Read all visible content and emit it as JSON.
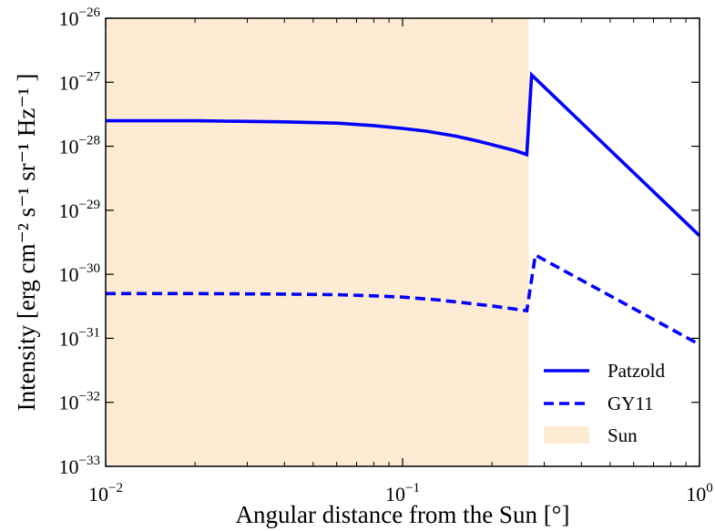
{
  "chart_data": {
    "type": "line",
    "xscale": "log",
    "yscale": "log",
    "xlim": [
      0.01,
      1
    ],
    "ylim": [
      1e-33,
      1e-26
    ],
    "xlabel": "Angular distance from the Sun [°]",
    "ylabel": "Intensity [erg cm⁻² s⁻¹ sr⁻¹ Hz⁻¹ ]",
    "x_ticks": [
      {
        "value": 0.01,
        "base": "10",
        "exp": "−2"
      },
      {
        "value": 0.1,
        "base": "10",
        "exp": "−1"
      },
      {
        "value": 1,
        "base": "10",
        "exp": "0"
      }
    ],
    "y_ticks": [
      {
        "value": 1e-33,
        "base": "10",
        "exp": "−33"
      },
      {
        "value": 1e-32,
        "base": "10",
        "exp": "−32"
      },
      {
        "value": 1e-31,
        "base": "10",
        "exp": "−31"
      },
      {
        "value": 1e-30,
        "base": "10",
        "exp": "−30"
      },
      {
        "value": 1e-29,
        "base": "10",
        "exp": "−29"
      },
      {
        "value": 1e-28,
        "base": "10",
        "exp": "−28"
      },
      {
        "value": 1e-27,
        "base": "10",
        "exp": "−27"
      },
      {
        "value": 1e-26,
        "base": "10",
        "exp": "−26"
      }
    ],
    "shaded_regions": [
      {
        "name": "Sun",
        "x": [
          0.01,
          0.266
        ],
        "color": "#fdebd3"
      }
    ],
    "series": [
      {
        "name": "Patzold",
        "color": "#0000ff",
        "style": "solid",
        "points": [
          [
            0.01,
            2.5e-28
          ],
          [
            0.02,
            2.5e-28
          ],
          [
            0.04,
            2.4e-28
          ],
          [
            0.06,
            2.3e-28
          ],
          [
            0.08,
            2.1e-28
          ],
          [
            0.1,
            1.9e-28
          ],
          [
            0.12,
            1.72e-28
          ],
          [
            0.15,
            1.45e-28
          ],
          [
            0.18,
            1.2e-28
          ],
          [
            0.21,
            1e-28
          ],
          [
            0.24,
            8.5e-29
          ],
          [
            0.262,
            7.4e-29
          ],
          [
            0.272,
            1.3e-27
          ],
          [
            1.0,
            4e-30
          ]
        ]
      },
      {
        "name": "GY11",
        "color": "#0000ff",
        "style": "dashed",
        "points": [
          [
            0.01,
            5e-31
          ],
          [
            0.02,
            5e-31
          ],
          [
            0.04,
            4.9e-31
          ],
          [
            0.06,
            4.8e-31
          ],
          [
            0.08,
            4.6e-31
          ],
          [
            0.1,
            4.4e-31
          ],
          [
            0.13,
            4e-31
          ],
          [
            0.16,
            3.6e-31
          ],
          [
            0.2,
            3.2e-31
          ],
          [
            0.24,
            2.85e-31
          ],
          [
            0.262,
            2.7e-31
          ],
          [
            0.28,
            2e-30
          ],
          [
            1.0,
            8e-32
          ]
        ]
      }
    ],
    "legend": {
      "position": "lower-right",
      "entries": [
        {
          "label": "Patzold",
          "style": "solid",
          "color": "#0000ff"
        },
        {
          "label": "GY11",
          "style": "dashed",
          "color": "#0000ff"
        },
        {
          "label": "Sun",
          "style": "patch",
          "color": "#fdebd3"
        }
      ]
    }
  }
}
